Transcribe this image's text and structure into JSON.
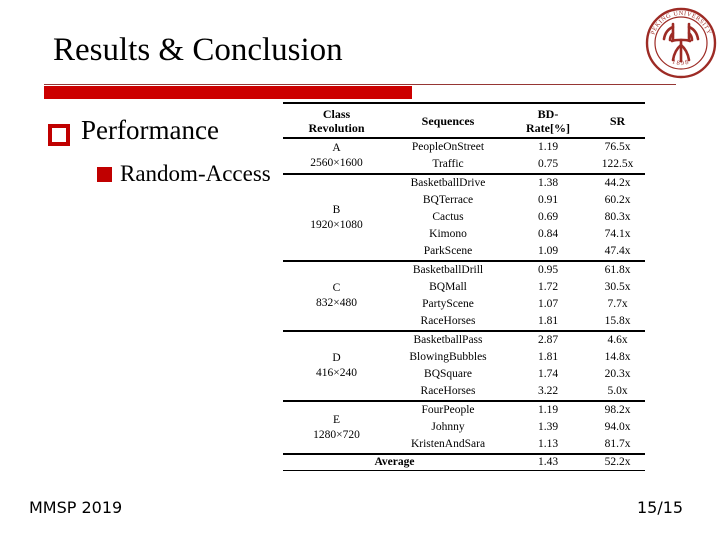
{
  "title": "Results & Conclusion",
  "bullets": [
    {
      "label": "Performance",
      "marker": "hollow-red-square"
    },
    {
      "label": "Random-Access",
      "marker": "filled-red-square"
    }
  ],
  "logo": {
    "ring_text": "PEKING UNIVERSITY",
    "year": "1898",
    "color": "#9d2b25"
  },
  "table": {
    "headers": [
      {
        "lines": [
          "Class",
          "Revolution"
        ]
      },
      {
        "lines": [
          "Sequences"
        ]
      },
      {
        "lines": [
          "BD-",
          "Rate[%]"
        ]
      },
      {
        "lines": [
          "SR"
        ]
      }
    ],
    "groups": [
      {
        "class_label": "A",
        "resolution": "2560×1600",
        "rows": [
          {
            "sequence": "PeopleOnStreet",
            "bd_rate": "1.19",
            "sr": "76.5x"
          },
          {
            "sequence": "Traffic",
            "bd_rate": "0.75",
            "sr": "122.5x"
          }
        ]
      },
      {
        "class_label": "B",
        "resolution": "1920×1080",
        "rows": [
          {
            "sequence": "BasketballDrive",
            "bd_rate": "1.38",
            "sr": "44.2x"
          },
          {
            "sequence": "BQTerrace",
            "bd_rate": "0.91",
            "sr": "60.2x"
          },
          {
            "sequence": "Cactus",
            "bd_rate": "0.69",
            "sr": "80.3x"
          },
          {
            "sequence": "Kimono",
            "bd_rate": "0.84",
            "sr": "74.1x"
          },
          {
            "sequence": "ParkScene",
            "bd_rate": "1.09",
            "sr": "47.4x"
          }
        ]
      },
      {
        "class_label": "C",
        "resolution": "832×480",
        "rows": [
          {
            "sequence": "BasketballDrill",
            "bd_rate": "0.95",
            "sr": "61.8x"
          },
          {
            "sequence": "BQMall",
            "bd_rate": "1.72",
            "sr": "30.5x"
          },
          {
            "sequence": "PartyScene",
            "bd_rate": "1.07",
            "sr": "7.7x"
          },
          {
            "sequence": "RaceHorses",
            "bd_rate": "1.81",
            "sr": "15.8x"
          }
        ]
      },
      {
        "class_label": "D",
        "resolution": "416×240",
        "rows": [
          {
            "sequence": "BasketballPass",
            "bd_rate": "2.87",
            "sr": "4.6x"
          },
          {
            "sequence": "BlowingBubbles",
            "bd_rate": "1.81",
            "sr": "14.8x"
          },
          {
            "sequence": "BQSquare",
            "bd_rate": "1.74",
            "sr": "20.3x"
          },
          {
            "sequence": "RaceHorses",
            "bd_rate": "3.22",
            "sr": "5.0x"
          }
        ]
      },
      {
        "class_label": "E",
        "resolution": "1280×720",
        "rows": [
          {
            "sequence": "FourPeople",
            "bd_rate": "1.19",
            "sr": "98.2x"
          },
          {
            "sequence": "Johnny",
            "bd_rate": "1.39",
            "sr": "94.0x"
          },
          {
            "sequence": "KristenAndSara",
            "bd_rate": "1.13",
            "sr": "81.7x"
          }
        ]
      }
    ],
    "average": {
      "label": "Average",
      "bd_rate": "1.43",
      "sr": "52.2x"
    }
  },
  "footer": {
    "left": "MMSP 2019",
    "right": "15/15"
  },
  "colors": {
    "accent_red": "#cc0000",
    "bullet_red": "#c00000",
    "thin_rule_red": "#963634",
    "seal_red": "#9d2b25",
    "text": "#000000"
  }
}
